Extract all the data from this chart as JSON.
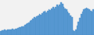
{
  "values": [
    18,
    20,
    19,
    22,
    21,
    23,
    22,
    24,
    23,
    25,
    24,
    26,
    28,
    30,
    32,
    34,
    36,
    38,
    42,
    46,
    50,
    54,
    58,
    64,
    70,
    76,
    72,
    78,
    84,
    90,
    86,
    92,
    98,
    102,
    96,
    104,
    110,
    105,
    112,
    118,
    112,
    120,
    128,
    122,
    130,
    138,
    132,
    120,
    114,
    108,
    100,
    92,
    84,
    76,
    20,
    16,
    24,
    40,
    56,
    72,
    88,
    100,
    108,
    112,
    116,
    112,
    108,
    104,
    100,
    108
  ],
  "fill_color": "#5b9bd5",
  "line_color": "#4a8fc8",
  "background_color": "#f2f2f2",
  "alpha": 1.0
}
